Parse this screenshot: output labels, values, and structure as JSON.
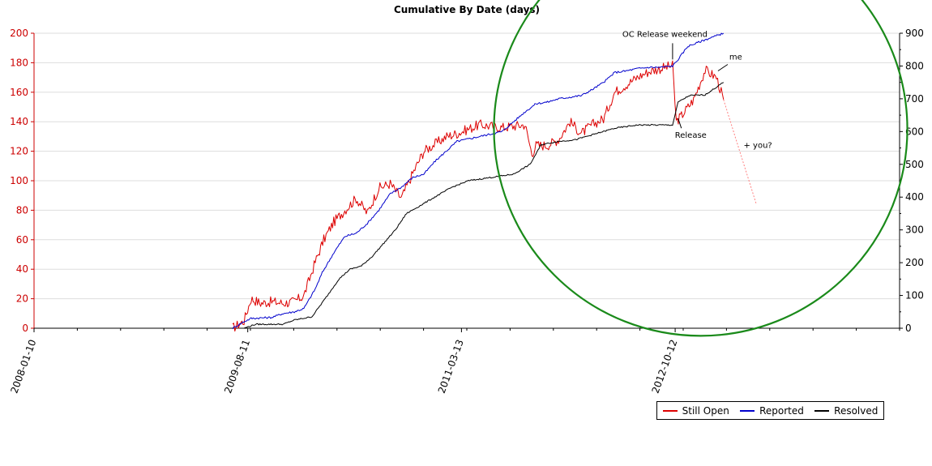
{
  "colors": {
    "still_open": "#dd0000",
    "reported": "#0000cc",
    "resolved": "#000000",
    "circle": "#1a8a1a",
    "left_axis": "#cc0000",
    "grid": "#dddddd"
  },
  "chart_data": {
    "type": "line",
    "title": "Cumulative By Date (days)",
    "x_ticks": [
      "2008-01-10",
      "2009-08-11",
      "2011-03-13",
      "2012-10-12"
    ],
    "x_range": [
      "2008-01-10",
      "2014-06-12"
    ],
    "y_left": {
      "range": [
        0,
        200
      ],
      "ticks": [
        0,
        20,
        40,
        60,
        80,
        100,
        120,
        140,
        160,
        180,
        200
      ]
    },
    "y_right": {
      "range": [
        0,
        900
      ],
      "ticks": [
        0,
        100,
        200,
        300,
        400,
        500,
        600,
        700,
        800,
        900
      ]
    },
    "grid": true,
    "legend_position": "bottom-right",
    "series": [
      {
        "name": "Still Open",
        "axis": "left",
        "color": "#dd0000",
        "x": [
          "2009-07-01",
          "2009-08-01",
          "2009-08-20",
          "2009-09-15",
          "2009-10-15",
          "2009-11-15",
          "2009-12-15",
          "2010-01-10",
          "2010-02-10",
          "2010-03-05",
          "2010-04-01",
          "2010-05-01",
          "2010-06-01",
          "2010-07-01",
          "2010-08-01",
          "2010-09-01",
          "2010-10-01",
          "2010-11-01",
          "2010-12-01",
          "2011-01-01",
          "2011-02-01",
          "2011-03-01",
          "2011-05-01",
          "2011-07-01",
          "2011-09-01",
          "2011-09-20",
          "2011-10-01",
          "2011-11-01",
          "2011-12-01",
          "2012-01-01",
          "2012-02-01",
          "2012-03-01",
          "2012-04-01",
          "2012-05-01",
          "2012-06-01",
          "2012-07-01",
          "2012-08-01",
          "2012-09-01",
          "2012-10-05",
          "2012-10-15",
          "2012-11-01",
          "2012-12-01",
          "2013-01-01",
          "2013-02-01",
          "2013-02-20"
        ],
        "values": [
          0,
          5,
          20,
          17,
          18,
          17,
          18,
          22,
          45,
          60,
          72,
          80,
          88,
          78,
          95,
          98,
          88,
          105,
          120,
          125,
          130,
          132,
          138,
          136,
          138,
          118,
          124,
          124,
          128,
          140,
          132,
          138,
          142,
          160,
          165,
          170,
          174,
          176,
          178,
          140,
          145,
          155,
          175,
          170,
          155
        ]
      },
      {
        "name": "Reported",
        "axis": "right",
        "color": "#0000cc",
        "x": [
          "2009-07-01",
          "2009-08-01",
          "2009-08-20",
          "2009-10-15",
          "2009-11-15",
          "2009-12-15",
          "2010-01-10",
          "2010-02-10",
          "2010-03-01",
          "2010-04-01",
          "2010-05-01",
          "2010-06-01",
          "2010-07-01",
          "2010-08-01",
          "2010-09-01",
          "2010-10-01",
          "2010-11-01",
          "2010-12-01",
          "2011-01-01",
          "2011-03-01",
          "2011-05-01",
          "2011-07-01",
          "2011-09-01",
          "2011-10-01",
          "2011-11-01",
          "2011-12-01",
          "2012-02-01",
          "2012-03-01",
          "2012-04-01",
          "2012-05-01",
          "2012-06-01",
          "2012-07-01",
          "2012-08-01",
          "2012-09-01",
          "2012-10-05",
          "2012-10-20",
          "2012-11-15",
          "2013-01-01",
          "2013-02-20"
        ],
        "values": [
          0,
          20,
          30,
          33,
          45,
          50,
          60,
          120,
          170,
          230,
          280,
          290,
          320,
          360,
          410,
          430,
          460,
          470,
          510,
          570,
          585,
          600,
          660,
          685,
          690,
          700,
          710,
          728,
          750,
          780,
          785,
          792,
          796,
          796,
          800,
          820,
          860,
          880,
          900
        ]
      },
      {
        "name": "Resolved",
        "axis": "right",
        "color": "#000000",
        "x": [
          "2009-08-01",
          "2009-09-01",
          "2009-11-15",
          "2009-12-15",
          "2010-02-01",
          "2010-03-15",
          "2010-04-15",
          "2010-05-15",
          "2010-06-15",
          "2010-07-15",
          "2010-08-15",
          "2010-09-15",
          "2010-10-15",
          "2010-11-15",
          "2010-12-15",
          "2011-01-15",
          "2011-02-15",
          "2011-04-01",
          "2011-06-01",
          "2011-08-01",
          "2011-09-15",
          "2011-10-15",
          "2011-12-01",
          "2012-01-15",
          "2012-03-01",
          "2012-05-01",
          "2012-07-01",
          "2012-10-05",
          "2012-10-20",
          "2012-11-20",
          "2013-01-01",
          "2013-02-20"
        ],
        "values": [
          0,
          12,
          12,
          25,
          35,
          100,
          150,
          180,
          190,
          220,
          260,
          300,
          350,
          370,
          390,
          410,
          430,
          450,
          460,
          470,
          500,
          560,
          570,
          575,
          590,
          610,
          620,
          620,
          690,
          710,
          712,
          750
        ]
      }
    ],
    "annotations": [
      {
        "text": "OC Release weekend",
        "x": "2012-10-05",
        "axis": "right",
        "y": 820
      },
      {
        "text": "me",
        "x": "2013-02-05",
        "axis": "right",
        "y": 785
      },
      {
        "text": "Release",
        "x": "2012-10-20",
        "axis": "right",
        "y": 640
      },
      {
        "text": "+ you?",
        "x": "2013-03-20",
        "axis": "right",
        "y": 550
      }
    ],
    "projection": {
      "series": "Still Open",
      "x": [
        "2013-02-20",
        "2013-05-20"
      ],
      "values": [
        155,
        84
      ]
    },
    "highlight_circle": {
      "center_x": "2012-12-20",
      "center_y_left": 135,
      "radius_days": 560
    }
  },
  "legend": {
    "items": [
      {
        "label": "Still Open",
        "color": "#dd0000"
      },
      {
        "label": "Reported",
        "color": "#0000cc"
      },
      {
        "label": "Resolved",
        "color": "#000000"
      }
    ]
  }
}
